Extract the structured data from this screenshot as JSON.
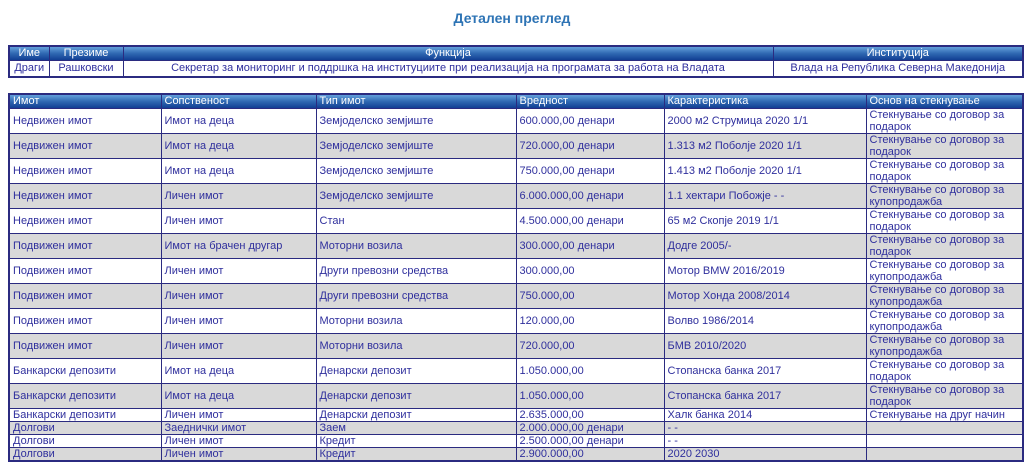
{
  "page": {
    "title": "Детален преглед"
  },
  "person_table": {
    "headers": [
      "Име",
      "Презиме",
      "Функција",
      "Институција"
    ],
    "rows": [
      [
        "Драги",
        "Рашковски",
        "Секретар за мониторинг и поддршка на институциите при реализација на програмата за работа на Владата",
        "Влада на Република Северна Македонија"
      ]
    ]
  },
  "assets_table": {
    "headers": [
      "Имот",
      "Сопственост",
      "Тип имот",
      "Вредност",
      "Карактеристика",
      "Основ на стекнување"
    ],
    "rows": [
      [
        "Недвижен имот",
        "Имот на деца",
        "Земјоделско земјиште",
        "600.000,00 денари",
        "2000 м2 Струмица 2020 1/1",
        "Стекнување со договор за подарок"
      ],
      [
        "Недвижен имот",
        "Имот на деца",
        "Земјоделско земјиште",
        "720.000,00 денари",
        "1.313 м2 Поболје 2020 1/1",
        "Стекнување со договор за подарок"
      ],
      [
        "Недвижен имот",
        "Имот на деца",
        "Земјоделско земјиште",
        "750.000,00 денари",
        "1.413 м2 Поболје 2020 1/1",
        "Стекнување со договор за подарок"
      ],
      [
        "Недвижен имот",
        "Личен имот",
        "Земјоделско земјиште",
        "6.000.000,00 денари",
        "1.1 хектари Побожје - -",
        "Стекнување со договор за купопродажба"
      ],
      [
        "Недвижен имот",
        "Личен имот",
        "Стан",
        "4.500.000,00 денари",
        "65 м2 Скопје 2019 1/1",
        "Стекнување со договор за подарок"
      ],
      [
        "Подвижен имот",
        "Имот на брачен другар",
        "Моторни возила",
        "300.000,00 денари",
        "Додге 2005/-",
        "Стекнување со договор за подарок"
      ],
      [
        "Подвижен имот",
        "Личен имот",
        "Други превозни средства",
        "300.000,00",
        "Мотор BMW 2016/2019",
        "Стекнување со договор за купопродажба"
      ],
      [
        "Подвижен имот",
        "Личен имот",
        "Други превозни средства",
        "750.000,00",
        "Мотор Хонда 2008/2014",
        "Стекнување со договор за купопродажба"
      ],
      [
        "Подвижен имот",
        "Личен имот",
        "Моторни возила",
        "120.000,00",
        "Волво 1986/2014",
        "Стекнување со договор за купопродажба"
      ],
      [
        "Подвижен имот",
        "Личен имот",
        "Моторни возила",
        "720.000,00",
        "БМВ 2010/2020",
        "Стекнување со договор за купопродажба"
      ],
      [
        "Банкарски депозити",
        "Имот на деца",
        "Денарски депозит",
        "1.050.000,00",
        "Стопанска банка 2017",
        "Стекнување со договор за подарок"
      ],
      [
        "Банкарски депозити",
        "Имот на деца",
        "Денарски депозит",
        "1.050.000,00",
        "Стопанска банка 2017",
        "Стекнување со договор за подарок"
      ],
      [
        "Банкарски депозити",
        "Личен имот",
        "Денарски депозит",
        "2.635.000,00",
        "Халк банка 2014",
        "Стекнување на друг начин"
      ],
      [
        "Долгови",
        "Заеднички имот",
        "Заем",
        "2.000.000,00 денари",
        "- -",
        ""
      ],
      [
        "Долгови",
        "Личен имот",
        "Кредит",
        "2.500.000,00 денари",
        "- -",
        ""
      ],
      [
        "Долгови",
        "Личен имот",
        "Кредит",
        "2.900.000,00",
        "2020 2030",
        ""
      ]
    ]
  },
  "colors": {
    "title": "#2e74b5",
    "cell_text": "#2f2f9d",
    "border": "#2b2b80",
    "row_alternate": "#d9d9d9",
    "header_gradient_top": "#5e9ad6",
    "header_gradient_mid": "#2f68b2",
    "header_gradient_bottom": "#123f93"
  }
}
